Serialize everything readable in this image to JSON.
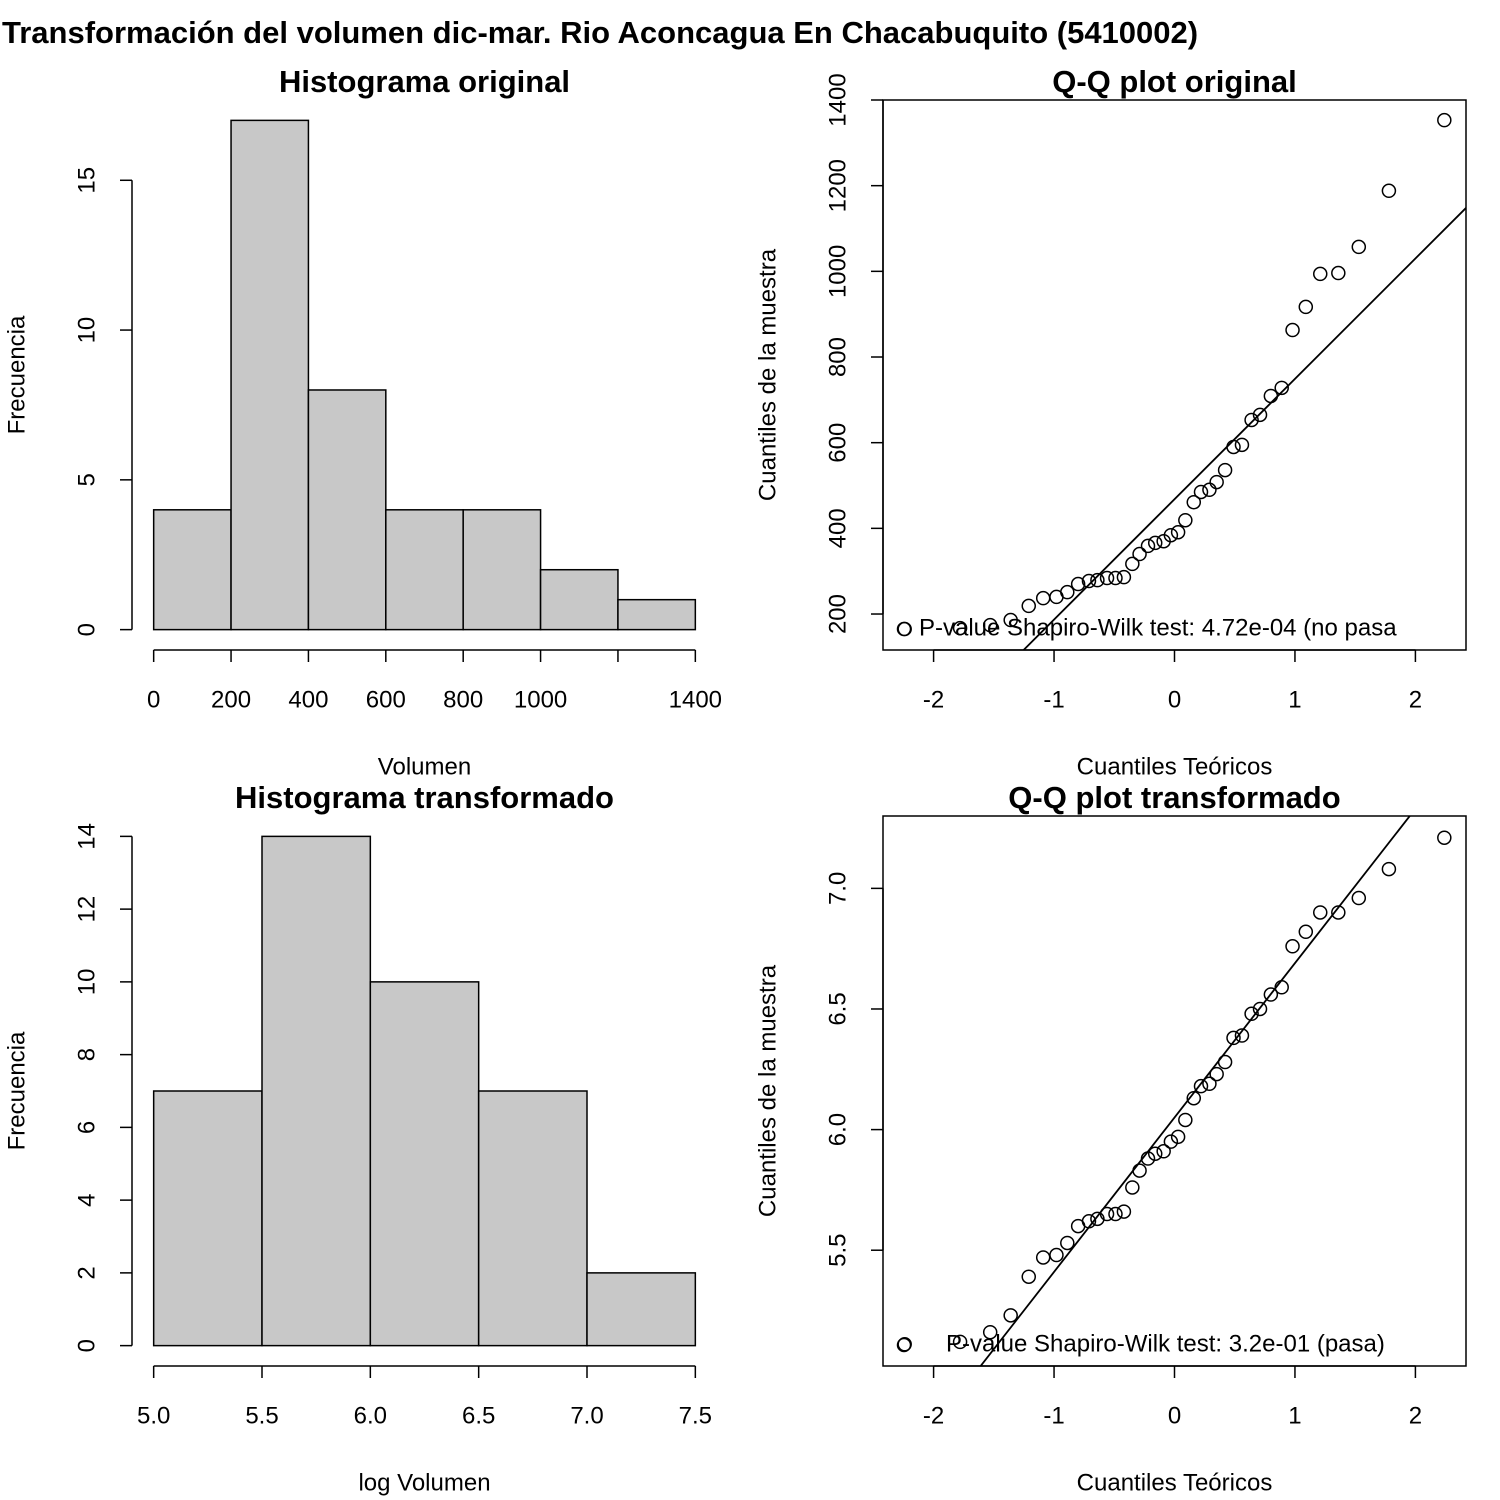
{
  "title": "Transformación del volumen dic-mar. Rio Aconcagua En Chacabuquito (5410002)",
  "chart_data": [
    {
      "type": "histogram",
      "title": "Histograma original",
      "x_label": "Volumen",
      "y_label": "Frecuencia",
      "bins": [
        0,
        200,
        400,
        600,
        800,
        1000,
        1200,
        1400
      ],
      "counts": [
        4,
        17,
        8,
        4,
        4,
        2,
        1
      ],
      "color": "#c8c8c8",
      "xlim": [
        -56,
        1456
      ],
      "ylim": [
        -0.68,
        17.68
      ],
      "xticks": [
        0,
        200,
        400,
        600,
        800,
        1000,
        {
          "value": 1200,
          "label": null
        },
        1400
      ],
      "yticks": [
        0,
        5,
        10,
        15
      ]
    },
    {
      "type": "qq",
      "title": "Q-Q plot original",
      "x_label": "Cuantiles Teóricos",
      "y_label": "Cuantiles de la muestra",
      "x": [
        -2.24,
        -1.78,
        -1.53,
        -1.36,
        -1.21,
        -1.09,
        -0.98,
        -0.89,
        -0.8,
        -0.71,
        -0.64,
        -0.56,
        -0.49,
        -0.42,
        -0.35,
        -0.29,
        -0.22,
        -0.16,
        -0.09,
        -0.03,
        0.03,
        0.09,
        0.16,
        0.22,
        0.29,
        0.35,
        0.42,
        0.49,
        0.56,
        0.64,
        0.71,
        0.8,
        0.89,
        0.98,
        1.09,
        1.21,
        1.36,
        1.53,
        1.78,
        2.24
      ],
      "values": [
        165,
        167,
        174,
        186,
        219,
        237,
        240,
        251,
        270,
        277,
        279,
        284,
        284,
        286,
        317,
        340,
        359,
        366,
        370,
        384,
        391,
        419,
        461,
        485,
        490,
        508,
        536,
        590,
        595,
        653,
        665,
        709,
        728,
        863,
        917,
        994,
        996,
        1057,
        1188,
        1353
      ],
      "qqline": {
        "intercept": 468,
        "slope": 281
      },
      "legend": "P-value Shapiro-Wilk test: 4.72e-04 (no pasa",
      "legend_position": "bottomleft",
      "xlim": [
        -2.42,
        2.42
      ],
      "ylim": [
        116,
        1400
      ],
      "xticks": [
        -2,
        -1,
        0,
        1,
        2
      ],
      "yticks": [
        200,
        400,
        600,
        800,
        1000,
        1200,
        1400
      ]
    },
    {
      "type": "histogram",
      "title": "Histograma transformado",
      "x_label": "log Volumen",
      "y_label": "Frecuencia",
      "bins": [
        5,
        5.5,
        6,
        6.5,
        7,
        7.5
      ],
      "counts": [
        7,
        14,
        10,
        7,
        2
      ],
      "color": "#c8c8c8",
      "xlim": [
        4.9,
        7.6
      ],
      "ylim": [
        -0.56,
        14.56
      ],
      "xticks": [
        {
          "value": 5,
          "label": "5.0"
        },
        5.5,
        {
          "value": 6,
          "label": "6.0"
        },
        6.5,
        {
          "value": 7,
          "label": "7.0"
        },
        7.5
      ],
      "yticks": [
        0,
        2,
        4,
        6,
        8,
        10,
        12,
        14
      ]
    },
    {
      "type": "qq",
      "title": "Q-Q plot transformado",
      "x_label": "Cuantiles Teóricos",
      "y_label": "Cuantiles de la muestra",
      "x": [
        -2.24,
        -1.78,
        -1.53,
        -1.36,
        -1.21,
        -1.09,
        -0.98,
        -0.89,
        -0.8,
        -0.71,
        -0.64,
        -0.56,
        -0.49,
        -0.42,
        -0.35,
        -0.29,
        -0.22,
        -0.16,
        -0.09,
        -0.03,
        0.03,
        0.09,
        0.16,
        0.22,
        0.29,
        0.35,
        0.42,
        0.49,
        0.56,
        0.64,
        0.71,
        0.8,
        0.89,
        0.98,
        1.09,
        1.21,
        1.36,
        1.53,
        1.78,
        2.24
      ],
      "values": [
        5.11,
        5.12,
        5.16,
        5.23,
        5.39,
        5.47,
        5.48,
        5.53,
        5.6,
        5.62,
        5.63,
        5.65,
        5.65,
        5.66,
        5.76,
        5.83,
        5.88,
        5.9,
        5.91,
        5.95,
        5.97,
        6.04,
        6.13,
        6.18,
        6.19,
        6.23,
        6.28,
        6.38,
        6.39,
        6.48,
        6.5,
        6.56,
        6.59,
        6.76,
        6.82,
        6.9,
        6.9,
        6.96,
        7.08,
        7.21
      ],
      "qqline": {
        "intercept": 6.05,
        "slope": 0.64
      },
      "legend": "P-value Shapiro-Wilk test: 3.2e-01 (pasa)",
      "legend_position": "bottomleft",
      "xlim": [
        -2.42,
        2.42
      ],
      "ylim": [
        5.02,
        7.3
      ],
      "xticks": [
        -2,
        -1,
        0,
        1,
        2
      ],
      "yticks": [
        5.5,
        {
          "value": 6,
          "label": "6.0"
        },
        6.5,
        {
          "value": 7,
          "label": "7.0"
        }
      ]
    }
  ]
}
